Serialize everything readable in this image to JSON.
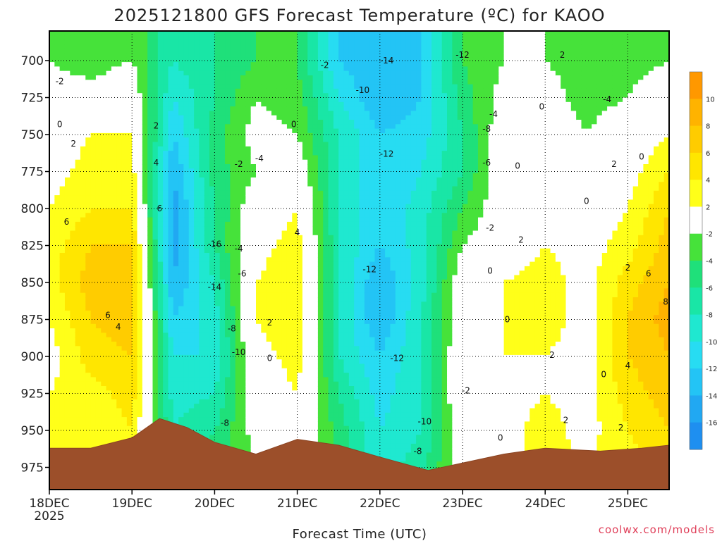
{
  "chart_data": {
    "type": "heatmap",
    "title": "2025121800 GFS Forecast Temperature (ºC) for KAOO",
    "xlabel": "Forecast Time (UTC)",
    "ylabel": "Pressure (hPa)",
    "credit": "coolwx.com/models",
    "x_range_hours": [
      0,
      180
    ],
    "x_ticks": [
      {
        "hour": 0,
        "label": "18DEC",
        "sublabel": "2025"
      },
      {
        "hour": 24,
        "label": "19DEC"
      },
      {
        "hour": 48,
        "label": "20DEC"
      },
      {
        "hour": 72,
        "label": "21DEC"
      },
      {
        "hour": 96,
        "label": "22DEC"
      },
      {
        "hour": 120,
        "label": "23DEC"
      },
      {
        "hour": 144,
        "label": "24DEC"
      },
      {
        "hour": 168,
        "label": "25DEC"
      }
    ],
    "y_range_hpa": [
      680,
      990
    ],
    "y_ticks": [
      700,
      725,
      750,
      775,
      800,
      825,
      850,
      875,
      900,
      925,
      950,
      975
    ],
    "colorbar": {
      "levels": [
        -18,
        -16,
        -14,
        -12,
        -10,
        -8,
        -6,
        -4,
        -2,
        2,
        4,
        6,
        8,
        10,
        12
      ],
      "labels": [
        "10",
        "8",
        "6",
        "4",
        "2",
        "-2",
        "-4",
        "-6",
        "-8",
        "-10",
        "-12",
        "-14",
        "-16"
      ],
      "colors": [
        "#1e8ff0",
        "#21a8f2",
        "#23c4f5",
        "#27dcf2",
        "#1fe8d0",
        "#19e6a6",
        "#1fe07a",
        "#46e23a",
        "#ffffff",
        "#ffff19",
        "#ffe600",
        "#ffcc00",
        "#ffb300",
        "#ff9800"
      ]
    },
    "temperature_profiles": [
      {
        "hour": 0,
        "temps_by_level": [
          -2,
          -1,
          0,
          1,
          2,
          3,
          3,
          2,
          1,
          2,
          3,
          2
        ]
      },
      {
        "hour": 12,
        "temps_by_level": [
          -3,
          -1,
          2,
          3,
          4,
          6,
          7,
          6,
          5,
          3,
          2,
          2
        ]
      },
      {
        "hour": 24,
        "temps_by_level": [
          -2,
          0,
          2,
          3,
          4,
          6,
          7,
          7,
          6,
          5,
          4,
          3
        ]
      },
      {
        "hour": 36,
        "temps_by_level": [
          -8,
          -10,
          -12,
          -14,
          -15,
          -15,
          -14,
          -12,
          -10,
          -9,
          -8,
          -8
        ]
      },
      {
        "hour": 48,
        "temps_by_level": [
          -6,
          -6,
          -5,
          -5,
          -6,
          -6,
          -8,
          -9,
          -10,
          -8,
          -6,
          -5
        ]
      },
      {
        "hour": 60,
        "temps_by_level": [
          -4,
          -2,
          -1,
          -2,
          0,
          1,
          2,
          2,
          1,
          0,
          -1,
          -2
        ]
      },
      {
        "hour": 72,
        "temps_by_level": [
          -4,
          -3,
          -2,
          0,
          2,
          3,
          4,
          4,
          3,
          2,
          1,
          1
        ]
      },
      {
        "hour": 84,
        "temps_by_level": [
          -12,
          -10,
          -8,
          -8,
          -8,
          -8,
          -8,
          -8,
          -8,
          -6,
          -5,
          -5
        ]
      },
      {
        "hour": 96,
        "temps_by_level": [
          -14,
          -14,
          -12,
          -12,
          -12,
          -12,
          -14,
          -14,
          -12,
          -11,
          -10,
          -9
        ]
      },
      {
        "hour": 108,
        "temps_by_level": [
          -12,
          -12,
          -11,
          -10,
          -9,
          -9,
          -9,
          -8,
          -8,
          -8,
          -8,
          -7
        ]
      },
      {
        "hour": 120,
        "temps_by_level": [
          -4,
          -5,
          -6,
          -6,
          -4,
          -2,
          0,
          0,
          1,
          1,
          0,
          0
        ]
      },
      {
        "hour": 132,
        "temps_by_level": [
          -2,
          -1,
          0,
          0,
          0,
          0,
          2,
          2,
          2,
          1,
          1,
          1
        ]
      },
      {
        "hour": 144,
        "temps_by_level": [
          -2,
          -1,
          0,
          0,
          1,
          2,
          3,
          3,
          2,
          2,
          3,
          3
        ]
      },
      {
        "hour": 156,
        "temps_by_level": [
          -3,
          -3,
          -2,
          -1,
          0,
          1,
          1,
          1,
          1,
          1,
          1,
          2
        ]
      },
      {
        "hour": 168,
        "temps_by_level": [
          -3,
          -2,
          0,
          1,
          2,
          3,
          5,
          6,
          6,
          5,
          4,
          3
        ]
      },
      {
        "hour": 180,
        "temps_by_level": [
          -2,
          0,
          2,
          4,
          6,
          7,
          8,
          9,
          8,
          7,
          6,
          5
        ]
      }
    ],
    "terrain_surface_hpa": [
      {
        "hour": 0,
        "p": 962
      },
      {
        "hour": 12,
        "p": 962
      },
      {
        "hour": 24,
        "p": 955
      },
      {
        "hour": 32,
        "p": 942
      },
      {
        "hour": 40,
        "p": 948
      },
      {
        "hour": 48,
        "p": 958
      },
      {
        "hour": 60,
        "p": 966
      },
      {
        "hour": 72,
        "p": 956
      },
      {
        "hour": 84,
        "p": 960
      },
      {
        "hour": 96,
        "p": 968
      },
      {
        "hour": 110,
        "p": 977
      },
      {
        "hour": 120,
        "p": 972
      },
      {
        "hour": 132,
        "p": 966
      },
      {
        "hour": 144,
        "p": 962
      },
      {
        "hour": 160,
        "p": 964
      },
      {
        "hour": 172,
        "p": 962
      },
      {
        "hour": 180,
        "p": 960
      }
    ],
    "contour_labels": [
      {
        "text": "-2",
        "hour": 3,
        "p": 716
      },
      {
        "text": "0",
        "hour": 3,
        "p": 745
      },
      {
        "text": "2",
        "hour": 7,
        "p": 758
      },
      {
        "text": "6",
        "hour": 5,
        "p": 811
      },
      {
        "text": "6",
        "hour": 17,
        "p": 874
      },
      {
        "text": "4",
        "hour": 20,
        "p": 882
      },
      {
        "text": "2",
        "hour": 31,
        "p": 746
      },
      {
        "text": "4",
        "hour": 31,
        "p": 771
      },
      {
        "text": "6",
        "hour": 32,
        "p": 802
      },
      {
        "text": "-16",
        "hour": 48,
        "p": 826
      },
      {
        "text": "-14",
        "hour": 48,
        "p": 855
      },
      {
        "text": "-4",
        "hour": 55,
        "p": 829
      },
      {
        "text": "-6",
        "hour": 56,
        "p": 846
      },
      {
        "text": "-8",
        "hour": 53,
        "p": 883
      },
      {
        "text": "-10",
        "hour": 55,
        "p": 899
      },
      {
        "text": "-8",
        "hour": 51,
        "p": 947
      },
      {
        "text": "-2",
        "hour": 55,
        "p": 772
      },
      {
        "text": "-4",
        "hour": 61,
        "p": 768
      },
      {
        "text": "2",
        "hour": 64,
        "p": 879
      },
      {
        "text": "0",
        "hour": 64,
        "p": 903
      },
      {
        "text": "4",
        "hour": 72,
        "p": 818
      },
      {
        "text": "0",
        "hour": 71,
        "p": 745
      },
      {
        "text": "-2",
        "hour": 80,
        "p": 705
      },
      {
        "text": "-10",
        "hour": 91,
        "p": 722
      },
      {
        "text": "-14",
        "hour": 98,
        "p": 702
      },
      {
        "text": "-12",
        "hour": 120,
        "p": 698
      },
      {
        "text": "-12",
        "hour": 98,
        "p": 765
      },
      {
        "text": "-12",
        "hour": 93,
        "p": 843
      },
      {
        "text": "-12",
        "hour": 101,
        "p": 903
      },
      {
        "text": "-10",
        "hour": 109,
        "p": 946
      },
      {
        "text": "-8",
        "hour": 107,
        "p": 966
      },
      {
        "text": "-2",
        "hour": 121,
        "p": 925
      },
      {
        "text": "-4",
        "hour": 129,
        "p": 738
      },
      {
        "text": "-8",
        "hour": 127,
        "p": 748
      },
      {
        "text": "-6",
        "hour": 127,
        "p": 771
      },
      {
        "text": "-2",
        "hour": 128,
        "p": 815
      },
      {
        "text": "0",
        "hour": 128,
        "p": 844
      },
      {
        "text": "0",
        "hour": 133,
        "p": 877
      },
      {
        "text": "2",
        "hour": 137,
        "p": 823
      },
      {
        "text": "0",
        "hour": 131,
        "p": 957
      },
      {
        "text": "2",
        "hour": 149,
        "p": 698
      },
      {
        "text": "0",
        "hour": 143,
        "p": 733
      },
      {
        "text": "0",
        "hour": 136,
        "p": 773
      },
      {
        "text": "2",
        "hour": 146,
        "p": 901
      },
      {
        "text": "2",
        "hour": 150,
        "p": 945
      },
      {
        "text": "0",
        "hour": 156,
        "p": 797
      },
      {
        "text": "-4",
        "hour": 162,
        "p": 728
      },
      {
        "text": "2",
        "hour": 164,
        "p": 772
      },
      {
        "text": "0",
        "hour": 172,
        "p": 767
      },
      {
        "text": "-2",
        "hour": 171,
        "p": 668
      },
      {
        "text": "0",
        "hour": 161,
        "p": 914
      },
      {
        "text": "2",
        "hour": 166,
        "p": 950
      },
      {
        "text": "2",
        "hour": 168,
        "p": 842
      },
      {
        "text": "6",
        "hour": 174,
        "p": 846
      },
      {
        "text": "8",
        "hour": 179,
        "p": 865
      },
      {
        "text": "4",
        "hour": 168,
        "p": 908
      }
    ]
  }
}
